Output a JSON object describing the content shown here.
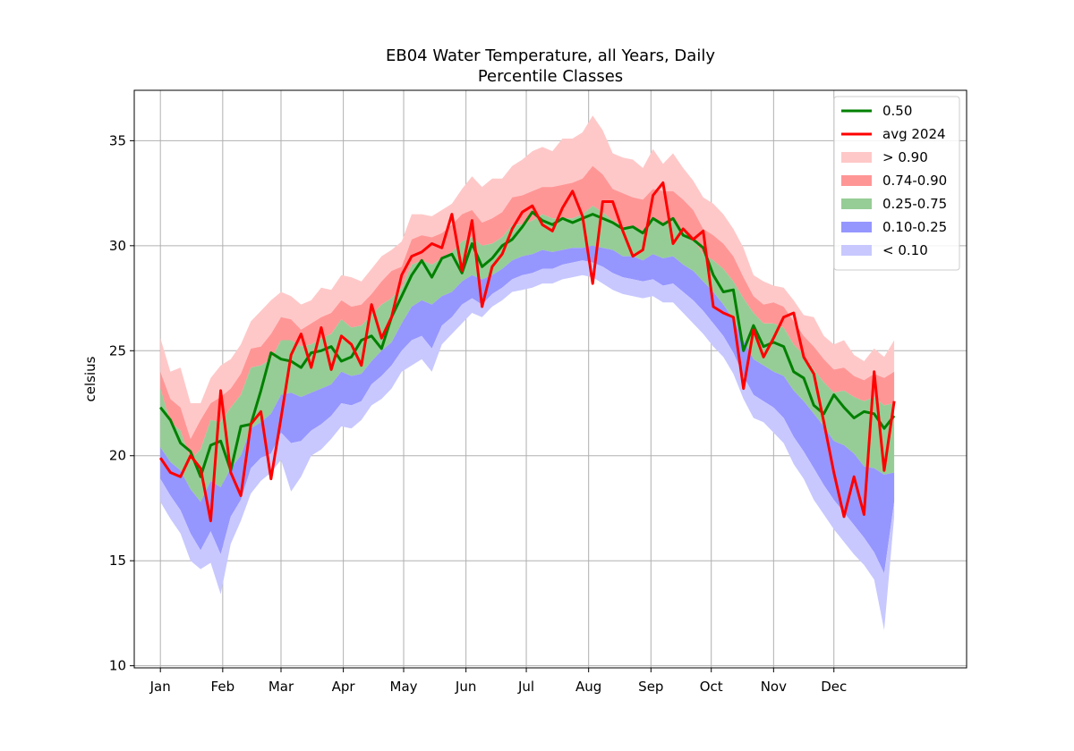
{
  "chart_data": {
    "type": "area",
    "title": "EB04 Water Temperature, all Years, Daily",
    "subtitle": "Percentile Classes",
    "xlabel": "",
    "ylabel": "celsius",
    "ylim": [
      9.9,
      37.4
    ],
    "xlim": [
      -12,
      402
    ],
    "grid": true,
    "legend_position": "top-right",
    "x_ticks": [
      {
        "label": "Jan",
        "day": 1
      },
      {
        "label": "Feb",
        "day": 32
      },
      {
        "label": "Mar",
        "day": 61
      },
      {
        "label": "Apr",
        "day": 92
      },
      {
        "label": "May",
        "day": 122
      },
      {
        "label": "Jun",
        "day": 153
      },
      {
        "label": "Jul",
        "day": 183
      },
      {
        "label": "Aug",
        "day": 214
      },
      {
        "label": "Sep",
        "day": 245
      },
      {
        "label": "Oct",
        "day": 275
      },
      {
        "label": "Nov",
        "day": 306
      },
      {
        "label": "Dec",
        "day": 336
      }
    ],
    "y_ticks": [
      10,
      15,
      20,
      25,
      30,
      35
    ],
    "day": [
      1,
      6,
      11,
      16,
      21,
      26,
      31,
      36,
      41,
      46,
      51,
      56,
      61,
      66,
      71,
      76,
      81,
      86,
      91,
      96,
      101,
      106,
      111,
      116,
      121,
      126,
      131,
      136,
      141,
      146,
      151,
      156,
      161,
      166,
      171,
      176,
      181,
      186,
      191,
      196,
      201,
      206,
      211,
      216,
      221,
      226,
      231,
      236,
      241,
      246,
      251,
      256,
      261,
      266,
      271,
      276,
      281,
      286,
      291,
      296,
      301,
      306,
      311,
      316,
      321,
      326,
      331,
      336,
      341,
      346,
      351,
      356,
      361,
      366
    ],
    "bands": [
      {
        "name": "> 0.90",
        "color": "#ffc8c8",
        "lower": [
          24.0,
          22.7,
          22.3,
          20.8,
          21.7,
          22.5,
          22.8,
          23.2,
          23.9,
          25.1,
          25.2,
          25.8,
          26.6,
          26.5,
          26.0,
          26.3,
          26.6,
          26.8,
          27.4,
          27.1,
          27.2,
          27.7,
          28.3,
          28.8,
          29.0,
          30.3,
          30.5,
          30.4,
          30.6,
          31.0,
          31.5,
          31.7,
          31.1,
          31.3,
          31.6,
          32.3,
          32.4,
          32.6,
          32.8,
          32.8,
          32.9,
          33.0,
          33.2,
          33.8,
          33.4,
          32.7,
          32.5,
          32.3,
          32.2,
          32.7,
          32.6,
          32.6,
          32.2,
          31.7,
          30.8,
          30.5,
          30.1,
          29.5,
          28.5,
          27.6,
          27.2,
          27.3,
          27.1,
          26.4,
          25.7,
          25.2,
          24.6,
          24.1,
          24.2,
          23.8,
          23.6,
          23.9,
          23.7,
          24.0
        ],
        "upper": [
          25.6,
          24.0,
          24.2,
          22.5,
          22.5,
          23.7,
          24.3,
          24.6,
          25.3,
          26.4,
          26.9,
          27.4,
          27.8,
          27.6,
          27.2,
          27.4,
          28.0,
          27.9,
          28.6,
          28.5,
          28.3,
          28.9,
          29.5,
          29.8,
          30.2,
          31.5,
          31.5,
          31.4,
          31.7,
          32.0,
          32.7,
          33.3,
          32.8,
          33.2,
          33.2,
          33.8,
          34.1,
          34.5,
          34.7,
          34.5,
          35.1,
          35.1,
          35.4,
          36.2,
          35.5,
          34.4,
          34.2,
          34.1,
          33.7,
          34.6,
          33.9,
          34.4,
          33.7,
          33.1,
          32.3,
          32.0,
          31.5,
          30.8,
          29.9,
          28.6,
          28.3,
          28.1,
          28.0,
          27.4,
          26.7,
          26.6,
          25.7,
          25.3,
          25.5,
          24.8,
          24.5,
          25.1,
          24.7,
          25.5
        ]
      },
      {
        "name": "0.74-0.90",
        "color": "#ff9696",
        "lower": [
          23.2,
          21.6,
          21.2,
          19.8,
          20.3,
          21.7,
          21.6,
          22.3,
          22.9,
          24.2,
          24.3,
          24.6,
          25.5,
          25.5,
          25.2,
          25.3,
          25.6,
          25.8,
          26.5,
          26.1,
          26.2,
          26.7,
          27.2,
          27.5,
          28.0,
          29.1,
          29.3,
          29.1,
          29.4,
          29.7,
          30.2,
          30.4,
          30.0,
          30.1,
          30.4,
          31.0,
          31.0,
          31.2,
          31.5,
          31.3,
          31.3,
          31.3,
          31.5,
          31.9,
          31.6,
          31.2,
          30.9,
          30.9,
          30.7,
          31.3,
          31.0,
          31.2,
          30.7,
          30.3,
          29.6,
          29.3,
          28.9,
          28.3,
          27.5,
          26.8,
          26.3,
          26.3,
          26.1,
          25.3,
          24.8,
          24.1,
          23.5,
          23.0,
          23.1,
          22.8,
          22.6,
          22.8,
          22.4,
          22.5
        ],
        "upper": [
          24.0,
          22.7,
          22.3,
          20.8,
          21.7,
          22.5,
          22.8,
          23.2,
          23.9,
          25.1,
          25.2,
          25.8,
          26.6,
          26.5,
          26.0,
          26.3,
          26.6,
          26.8,
          27.4,
          27.1,
          27.2,
          27.7,
          28.3,
          28.8,
          29.0,
          30.3,
          30.5,
          30.4,
          30.6,
          31.0,
          31.5,
          31.7,
          31.1,
          31.3,
          31.6,
          32.3,
          32.4,
          32.6,
          32.8,
          32.8,
          32.9,
          33.0,
          33.2,
          33.8,
          33.4,
          32.7,
          32.5,
          32.3,
          32.2,
          32.7,
          32.6,
          32.6,
          32.2,
          31.7,
          30.8,
          30.5,
          30.1,
          29.5,
          28.5,
          27.6,
          27.2,
          27.3,
          27.1,
          26.4,
          25.7,
          25.2,
          24.6,
          24.1,
          24.2,
          23.8,
          23.6,
          23.9,
          23.7,
          24.0
        ]
      },
      {
        "name": "0.25-0.75",
        "color": "#96cd96",
        "lower": [
          20.4,
          19.7,
          19.3,
          18.4,
          17.8,
          18.8,
          18.5,
          19.4,
          20.0,
          21.3,
          21.6,
          22.0,
          22.9,
          23.0,
          22.8,
          23.0,
          23.2,
          23.4,
          24.0,
          23.8,
          23.9,
          24.5,
          25.0,
          25.4,
          26.3,
          27.1,
          27.4,
          27.2,
          27.6,
          27.8,
          28.3,
          28.6,
          28.4,
          28.6,
          28.9,
          29.3,
          29.5,
          29.6,
          29.8,
          29.7,
          29.8,
          29.9,
          29.9,
          30.0,
          29.9,
          29.8,
          29.5,
          29.5,
          29.3,
          29.6,
          29.4,
          29.5,
          29.1,
          28.8,
          28.3,
          27.8,
          27.2,
          26.5,
          25.5,
          24.6,
          24.3,
          24.0,
          23.8,
          23.1,
          22.6,
          22.0,
          21.4,
          20.7,
          20.5,
          20.1,
          19.5,
          19.4,
          19.1,
          19.2
        ],
        "upper": [
          23.2,
          21.6,
          21.2,
          19.8,
          20.3,
          21.7,
          21.6,
          22.3,
          22.9,
          24.2,
          24.3,
          24.6,
          25.5,
          25.5,
          25.2,
          25.3,
          25.6,
          25.8,
          26.5,
          26.1,
          26.2,
          26.7,
          27.2,
          27.5,
          28.0,
          29.1,
          29.3,
          29.1,
          29.4,
          29.7,
          30.2,
          30.4,
          30.0,
          30.1,
          30.4,
          31.0,
          31.0,
          31.2,
          31.5,
          31.3,
          31.3,
          31.3,
          31.5,
          31.9,
          31.6,
          31.2,
          30.9,
          30.9,
          30.7,
          31.3,
          31.0,
          31.2,
          30.7,
          30.3,
          29.6,
          29.3,
          28.9,
          28.3,
          27.5,
          26.8,
          26.3,
          26.3,
          26.1,
          25.3,
          24.8,
          24.1,
          23.5,
          23.0,
          23.1,
          22.8,
          22.6,
          22.8,
          22.4,
          22.5
        ]
      },
      {
        "name": "0.10-0.25",
        "color": "#9696ff",
        "lower": [
          18.9,
          18.1,
          17.4,
          16.3,
          15.5,
          16.4,
          15.3,
          17.1,
          17.9,
          19.4,
          19.9,
          20.1,
          21.1,
          20.6,
          20.7,
          21.2,
          21.5,
          21.9,
          22.5,
          22.4,
          22.6,
          23.4,
          23.8,
          24.3,
          25.0,
          25.5,
          25.7,
          25.1,
          26.2,
          26.6,
          27.2,
          27.5,
          27.2,
          27.7,
          28.0,
          28.4,
          28.6,
          28.7,
          28.9,
          28.9,
          29.1,
          29.2,
          29.3,
          29.2,
          29.0,
          28.7,
          28.5,
          28.4,
          28.3,
          28.4,
          28.1,
          28.2,
          27.8,
          27.4,
          26.9,
          26.3,
          25.7,
          24.9,
          23.8,
          22.9,
          22.6,
          22.3,
          21.8,
          20.9,
          20.2,
          19.4,
          18.6,
          17.9,
          17.3,
          16.7,
          16.1,
          15.4,
          14.4,
          17.8
        ],
        "upper": [
          20.4,
          19.7,
          19.3,
          18.4,
          17.8,
          18.8,
          18.5,
          19.4,
          20.0,
          21.3,
          21.6,
          22.0,
          22.9,
          23.0,
          22.8,
          23.0,
          23.2,
          23.4,
          24.0,
          23.8,
          23.9,
          24.5,
          25.0,
          25.4,
          26.3,
          27.1,
          27.4,
          27.2,
          27.6,
          27.8,
          28.3,
          28.6,
          28.4,
          28.6,
          28.9,
          29.3,
          29.5,
          29.6,
          29.8,
          29.7,
          29.8,
          29.9,
          29.9,
          30.0,
          29.9,
          29.8,
          29.5,
          29.5,
          29.3,
          29.6,
          29.4,
          29.5,
          29.1,
          28.8,
          28.3,
          27.8,
          27.2,
          26.5,
          25.5,
          24.6,
          24.3,
          24.0,
          23.8,
          23.1,
          22.6,
          22.0,
          21.4,
          20.7,
          20.5,
          20.1,
          19.5,
          19.4,
          19.1,
          19.2
        ]
      },
      {
        "name": "< 0.10",
        "color": "#c8c8ff",
        "lower": [
          17.8,
          17.0,
          16.3,
          15.0,
          14.6,
          14.9,
          13.4,
          15.8,
          16.9,
          18.2,
          18.8,
          19.2,
          19.8,
          18.3,
          19.0,
          20.0,
          20.3,
          20.8,
          21.4,
          21.3,
          21.7,
          22.4,
          22.7,
          23.2,
          24.0,
          24.3,
          24.6,
          24.0,
          25.3,
          25.8,
          26.3,
          26.8,
          26.6,
          27.1,
          27.4,
          27.8,
          27.9,
          28.0,
          28.2,
          28.2,
          28.4,
          28.5,
          28.6,
          28.5,
          28.2,
          27.9,
          27.7,
          27.6,
          27.5,
          27.6,
          27.3,
          27.3,
          26.8,
          26.3,
          25.8,
          25.2,
          24.7,
          23.9,
          22.7,
          21.8,
          21.6,
          21.1,
          20.6,
          19.6,
          18.9,
          17.9,
          17.2,
          16.5,
          15.9,
          15.3,
          14.8,
          14.1,
          11.7,
          17.1
        ],
        "upper": [
          18.9,
          18.1,
          17.4,
          16.3,
          15.5,
          16.4,
          15.3,
          17.1,
          17.9,
          19.4,
          19.9,
          20.1,
          21.1,
          20.6,
          20.7,
          21.2,
          21.5,
          21.9,
          22.5,
          22.4,
          22.6,
          23.4,
          23.8,
          24.3,
          25.0,
          25.5,
          25.7,
          25.1,
          26.2,
          26.6,
          27.2,
          27.5,
          27.2,
          27.7,
          28.0,
          28.4,
          28.6,
          28.7,
          28.9,
          28.9,
          29.1,
          29.2,
          29.3,
          29.2,
          29.0,
          28.7,
          28.5,
          28.4,
          28.3,
          28.4,
          28.1,
          28.2,
          27.8,
          27.4,
          26.9,
          26.3,
          25.7,
          24.9,
          23.8,
          22.9,
          22.6,
          22.3,
          21.8,
          20.9,
          20.2,
          19.4,
          18.6,
          17.9,
          17.3,
          16.7,
          16.1,
          15.4,
          14.4,
          17.8
        ]
      }
    ],
    "series": [
      {
        "name": "0.50",
        "color": "#008000",
        "values": [
          22.3,
          21.7,
          20.6,
          20.2,
          19.0,
          20.5,
          20.7,
          19.3,
          21.4,
          21.5,
          23.1,
          24.9,
          24.6,
          24.5,
          24.2,
          24.9,
          25.0,
          25.2,
          24.5,
          24.7,
          25.5,
          25.7,
          25.1,
          26.6,
          27.6,
          28.6,
          29.3,
          28.5,
          29.4,
          29.6,
          28.7,
          30.1,
          29.0,
          29.4,
          30.0,
          30.3,
          30.9,
          31.6,
          31.2,
          31.0,
          31.3,
          31.1,
          31.3,
          31.5,
          31.3,
          31.1,
          30.8,
          30.9,
          30.6,
          31.3,
          31.0,
          31.3,
          30.5,
          30.3,
          29.9,
          28.6,
          27.8,
          27.9,
          25.0,
          26.2,
          25.2,
          25.4,
          25.2,
          24.0,
          23.7,
          22.4,
          22.0,
          22.9,
          22.3,
          21.8,
          22.1,
          22.0,
          21.3,
          21.9
        ]
      },
      {
        "name": "avg 2024",
        "color": "#ff0000",
        "values": [
          19.9,
          19.2,
          19.0,
          20.0,
          19.4,
          16.9,
          23.1,
          19.2,
          18.1,
          21.5,
          22.1,
          18.9,
          21.8,
          24.8,
          25.8,
          24.2,
          26.1,
          24.1,
          25.7,
          25.3,
          24.3,
          27.2,
          25.6,
          26.6,
          28.6,
          29.5,
          29.7,
          30.1,
          29.9,
          31.5,
          28.8,
          31.2,
          27.1,
          29.0,
          29.6,
          30.8,
          31.6,
          31.9,
          31.0,
          30.7,
          31.8,
          32.6,
          31.4,
          28.2,
          32.1,
          32.1,
          30.7,
          29.5,
          29.8,
          32.4,
          33.0,
          30.1,
          30.8,
          30.3,
          30.7,
          27.1,
          26.8,
          26.6,
          23.2,
          26.0,
          24.7,
          25.6,
          26.6,
          26.8,
          24.7,
          23.9,
          21.6,
          19.2,
          17.1,
          19.0,
          17.2,
          24.0,
          19.3,
          22.6
        ]
      }
    ]
  }
}
